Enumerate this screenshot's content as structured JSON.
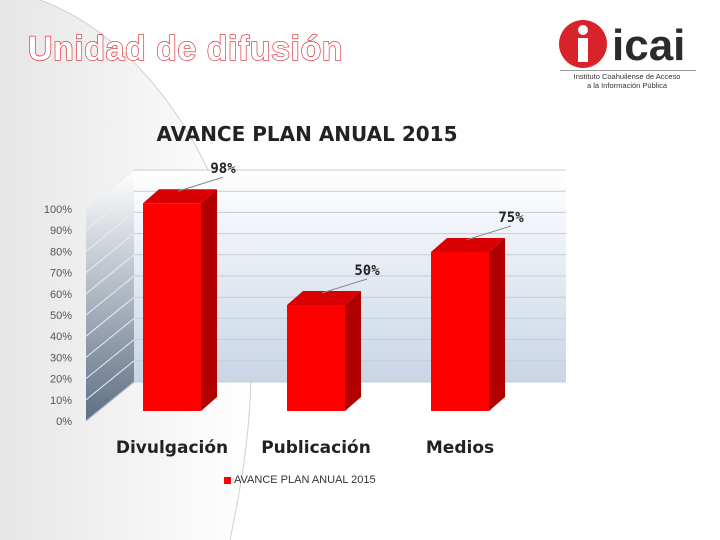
{
  "slide": {
    "title": "Unidad de difusión"
  },
  "logo": {
    "wordmark": "icai",
    "caption_line1": "Instituto Coahuilense de Acceso",
    "caption_line2": "a la Información Pública",
    "brand_color": "#d9232a"
  },
  "chart_data": {
    "type": "bar",
    "title": "AVANCE PLAN ANUAL 2015",
    "categories": [
      "Divulgación",
      "Publicación",
      "Medios"
    ],
    "series": [
      {
        "name": "AVANCE PLAN ANUAL 2015",
        "values": [
          0.98,
          0.5,
          0.75
        ],
        "color": "#ff0000"
      }
    ],
    "data_labels": [
      "98%",
      "50%",
      "75%"
    ],
    "ylim": [
      0,
      1
    ],
    "yticks": [
      "0%",
      "10%",
      "20%",
      "30%",
      "40%",
      "50%",
      "60%",
      "70%",
      "80%",
      "90%",
      "100%"
    ],
    "xlabel": "",
    "ylabel": "",
    "grid": true,
    "legend_position": "bottom",
    "style": "3d"
  }
}
